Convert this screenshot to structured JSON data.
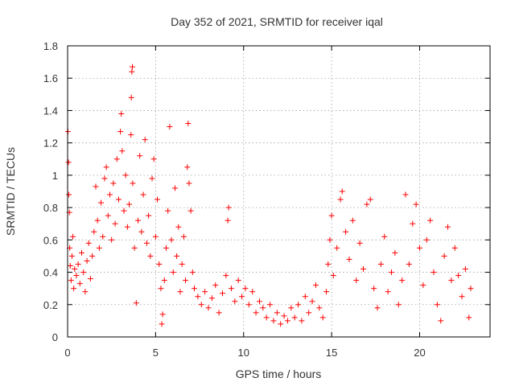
{
  "chart_data": {
    "type": "scatter",
    "title": "Day 352 of 2021, SRMTID for receiver iqal",
    "xlabel": "GPS time / hours",
    "ylabel": "SRMTID / TECUs",
    "xlim": [
      0,
      24
    ],
    "ylim": [
      0,
      1.8
    ],
    "xticks": [
      0,
      5,
      10,
      15,
      20
    ],
    "xtick_labels": [
      "0",
      "5",
      "10",
      "15",
      "20"
    ],
    "yticks": [
      0,
      0.2,
      0.4,
      0.6,
      0.8,
      1,
      1.2,
      1.4,
      1.6,
      1.8
    ],
    "ytick_labels": [
      "0",
      "0.2",
      "0.4",
      "0.6",
      "0.8",
      "1",
      "1.2",
      "1.4",
      "1.6",
      "1.8"
    ],
    "grid": true,
    "marker": "+",
    "marker_color": "#ff0000",
    "series": [
      {
        "name": "SRMTID",
        "points": [
          [
            0.02,
            1.27
          ],
          [
            0.05,
            1.08
          ],
          [
            0.07,
            0.88
          ],
          [
            0.1,
            0.77
          ],
          [
            0.12,
            0.55
          ],
          [
            0.15,
            0.44
          ],
          [
            0.2,
            0.35
          ],
          [
            0.25,
            0.5
          ],
          [
            0.3,
            0.62
          ],
          [
            0.35,
            0.3
          ],
          [
            0.4,
            0.42
          ],
          [
            0.5,
            0.38
          ],
          [
            0.6,
            0.45
          ],
          [
            0.7,
            0.33
          ],
          [
            0.8,
            0.52
          ],
          [
            0.9,
            0.4
          ],
          [
            1.0,
            0.28
          ],
          [
            1.1,
            0.47
          ],
          [
            1.2,
            0.58
          ],
          [
            1.3,
            0.36
          ],
          [
            1.4,
            0.5
          ],
          [
            1.5,
            0.65
          ],
          [
            1.6,
            0.93
          ],
          [
            1.7,
            0.72
          ],
          [
            1.8,
            0.55
          ],
          [
            1.9,
            0.83
          ],
          [
            2.0,
            0.62
          ],
          [
            2.1,
            0.98
          ],
          [
            2.2,
            1.05
          ],
          [
            2.3,
            0.75
          ],
          [
            2.4,
            0.88
          ],
          [
            2.5,
            0.6
          ],
          [
            2.6,
            0.95
          ],
          [
            2.7,
            0.7
          ],
          [
            2.8,
            1.1
          ],
          [
            2.9,
            0.85
          ],
          [
            3.0,
            1.27
          ],
          [
            3.05,
            1.38
          ],
          [
            3.1,
            1.15
          ],
          [
            3.2,
            0.78
          ],
          [
            3.3,
            1.0
          ],
          [
            3.4,
            0.68
          ],
          [
            3.5,
            0.82
          ],
          [
            3.6,
            1.25
          ],
          [
            3.62,
            1.48
          ],
          [
            3.65,
            1.64
          ],
          [
            3.68,
            1.67
          ],
          [
            3.7,
            0.95
          ],
          [
            3.8,
            0.55
          ],
          [
            3.9,
            0.21
          ],
          [
            4.0,
            0.72
          ],
          [
            4.1,
            1.12
          ],
          [
            4.2,
            0.65
          ],
          [
            4.3,
            0.88
          ],
          [
            4.4,
            1.22
          ],
          [
            4.5,
            0.58
          ],
          [
            4.6,
            0.75
          ],
          [
            4.7,
            0.5
          ],
          [
            4.8,
            0.98
          ],
          [
            4.9,
            1.1
          ],
          [
            5.0,
            0.62
          ],
          [
            5.1,
            0.85
          ],
          [
            5.2,
            0.45
          ],
          [
            5.3,
            0.3
          ],
          [
            5.35,
            0.08
          ],
          [
            5.4,
            0.14
          ],
          [
            5.5,
            0.35
          ],
          [
            5.6,
            0.55
          ],
          [
            5.7,
            0.78
          ],
          [
            5.8,
            1.3
          ],
          [
            5.9,
            0.6
          ],
          [
            6.0,
            0.4
          ],
          [
            6.1,
            0.92
          ],
          [
            6.2,
            0.5
          ],
          [
            6.3,
            0.68
          ],
          [
            6.4,
            0.28
          ],
          [
            6.5,
            0.45
          ],
          [
            6.6,
            0.62
          ],
          [
            6.7,
            0.35
          ],
          [
            6.8,
            1.05
          ],
          [
            6.85,
            1.32
          ],
          [
            6.9,
            0.95
          ],
          [
            7.0,
            0.78
          ],
          [
            7.1,
            0.4
          ],
          [
            7.2,
            0.3
          ],
          [
            7.4,
            0.25
          ],
          [
            7.6,
            0.2
          ],
          [
            7.8,
            0.28
          ],
          [
            8.0,
            0.18
          ],
          [
            8.2,
            0.24
          ],
          [
            8.4,
            0.32
          ],
          [
            8.6,
            0.15
          ],
          [
            8.8,
            0.27
          ],
          [
            9.0,
            0.38
          ],
          [
            9.1,
            0.72
          ],
          [
            9.15,
            0.8
          ],
          [
            9.3,
            0.3
          ],
          [
            9.5,
            0.22
          ],
          [
            9.7,
            0.35
          ],
          [
            9.9,
            0.25
          ],
          [
            10.1,
            0.3
          ],
          [
            10.3,
            0.2
          ],
          [
            10.5,
            0.28
          ],
          [
            10.7,
            0.15
          ],
          [
            10.9,
            0.22
          ],
          [
            11.1,
            0.18
          ],
          [
            11.3,
            0.12
          ],
          [
            11.5,
            0.2
          ],
          [
            11.7,
            0.1
          ],
          [
            11.9,
            0.15
          ],
          [
            12.1,
            0.08
          ],
          [
            12.3,
            0.13
          ],
          [
            12.5,
            0.1
          ],
          [
            12.7,
            0.18
          ],
          [
            12.9,
            0.12
          ],
          [
            13.1,
            0.2
          ],
          [
            13.3,
            0.1
          ],
          [
            13.5,
            0.25
          ],
          [
            13.7,
            0.15
          ],
          [
            13.9,
            0.22
          ],
          [
            14.1,
            0.32
          ],
          [
            14.3,
            0.18
          ],
          [
            14.5,
            0.12
          ],
          [
            14.7,
            0.28
          ],
          [
            14.8,
            0.45
          ],
          [
            14.9,
            0.6
          ],
          [
            15.0,
            0.75
          ],
          [
            15.1,
            0.38
          ],
          [
            15.3,
            0.55
          ],
          [
            15.5,
            0.85
          ],
          [
            15.6,
            0.9
          ],
          [
            15.8,
            0.65
          ],
          [
            16.0,
            0.48
          ],
          [
            16.2,
            0.72
          ],
          [
            16.4,
            0.35
          ],
          [
            16.6,
            0.58
          ],
          [
            16.8,
            0.42
          ],
          [
            17.0,
            0.82
          ],
          [
            17.2,
            0.85
          ],
          [
            17.4,
            0.3
          ],
          [
            17.6,
            0.18
          ],
          [
            17.8,
            0.45
          ],
          [
            18.0,
            0.62
          ],
          [
            18.2,
            0.28
          ],
          [
            18.4,
            0.4
          ],
          [
            18.6,
            0.52
          ],
          [
            18.8,
            0.2
          ],
          [
            19.0,
            0.35
          ],
          [
            19.2,
            0.88
          ],
          [
            19.4,
            0.45
          ],
          [
            19.6,
            0.7
          ],
          [
            19.8,
            0.82
          ],
          [
            20.0,
            0.55
          ],
          [
            20.2,
            0.32
          ],
          [
            20.4,
            0.6
          ],
          [
            20.6,
            0.72
          ],
          [
            20.8,
            0.4
          ],
          [
            21.0,
            0.2
          ],
          [
            21.2,
            0.1
          ],
          [
            21.4,
            0.5
          ],
          [
            21.6,
            0.68
          ],
          [
            21.8,
            0.35
          ],
          [
            22.0,
            0.55
          ],
          [
            22.2,
            0.38
          ],
          [
            22.4,
            0.25
          ],
          [
            22.6,
            0.42
          ],
          [
            22.8,
            0.12
          ],
          [
            22.9,
            0.3
          ]
        ]
      }
    ]
  }
}
